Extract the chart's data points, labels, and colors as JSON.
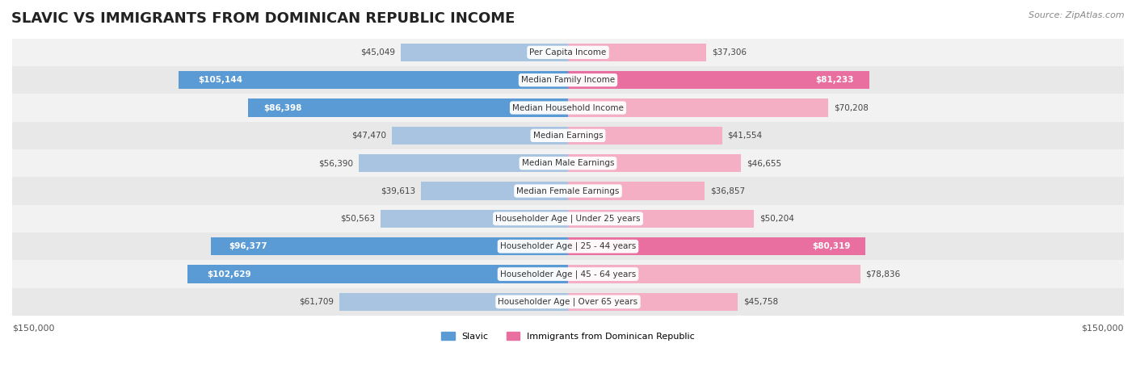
{
  "title": "SLAVIC VS IMMIGRANTS FROM DOMINICAN REPUBLIC INCOME",
  "source": "Source: ZipAtlas.com",
  "categories": [
    "Per Capita Income",
    "Median Family Income",
    "Median Household Income",
    "Median Earnings",
    "Median Male Earnings",
    "Median Female Earnings",
    "Householder Age | Under 25 years",
    "Householder Age | 25 - 44 years",
    "Householder Age | 45 - 64 years",
    "Householder Age | Over 65 years"
  ],
  "slavic_values": [
    45049,
    105144,
    86398,
    47470,
    56390,
    39613,
    50563,
    96377,
    102629,
    61709
  ],
  "immigrant_values": [
    37306,
    81233,
    70208,
    41554,
    46655,
    36857,
    50204,
    80319,
    78836,
    45758
  ],
  "slavic_labels": [
    "$45,049",
    "$105,144",
    "$86,398",
    "$47,470",
    "$56,390",
    "$39,613",
    "$50,563",
    "$96,377",
    "$102,629",
    "$61,709"
  ],
  "immigrant_labels": [
    "$37,306",
    "$81,233",
    "$70,208",
    "$41,554",
    "$46,655",
    "$36,857",
    "$50,204",
    "$80,319",
    "$78,836",
    "$45,758"
  ],
  "slavic_color_light": "#a8c4e0",
  "slavic_color_dark": "#5b9bd5",
  "immigrant_color_light": "#f4afc4",
  "immigrant_color_dark": "#e96fa0",
  "max_value": 150000,
  "background_color": "#ffffff",
  "row_bg_color": "#f0f0f0",
  "legend_slavic": "Slavic",
  "legend_immigrant": "Immigrants from Dominican Republic",
  "x_label_left": "$150,000",
  "x_label_right": "$150,000",
  "threshold_dark_label": 80000
}
